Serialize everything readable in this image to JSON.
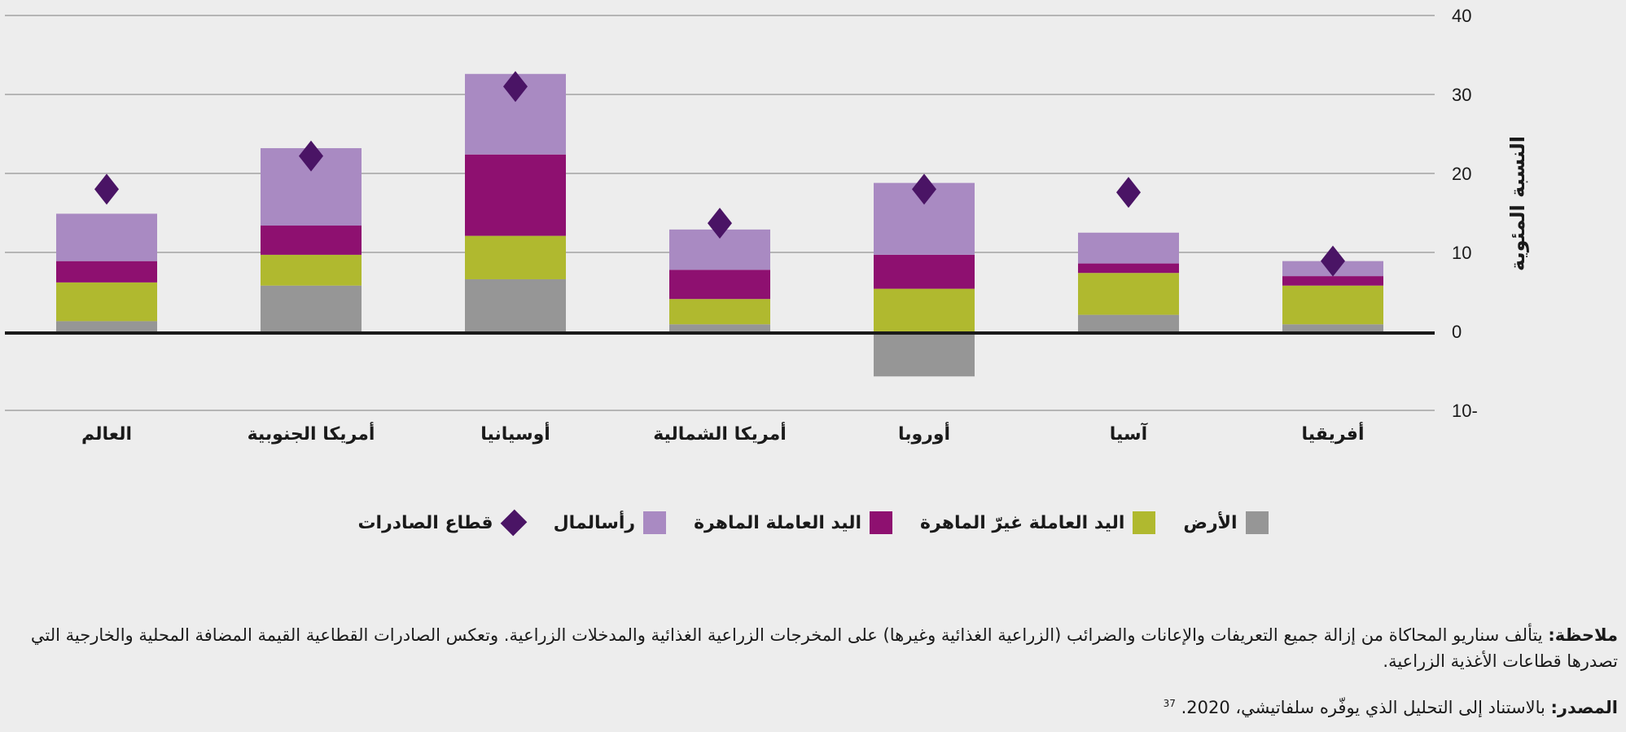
{
  "chart_data": {
    "type": "bar",
    "stacked": true,
    "categories": [
      "العالم",
      "أمريكا الجنوبية",
      "أوسيانيا",
      "أمريكا الشمالية",
      "أوروبا",
      "آسيا",
      "أفريقيا"
    ],
    "series": [
      {
        "name": "الأرض",
        "color": "#969696",
        "values": [
          1.3,
          5.8,
          6.6,
          0.9,
          -5.7,
          2.1,
          0.9
        ]
      },
      {
        "name": "اليد العاملة غيرّ الماهرة",
        "color": "#b0b92f",
        "values": [
          4.9,
          3.9,
          5.5,
          3.2,
          5.4,
          5.3,
          4.9
        ]
      },
      {
        "name": "اليد العاملة الماهرة",
        "color": "#8e1070",
        "values": [
          2.7,
          3.7,
          10.3,
          3.7,
          4.3,
          1.2,
          1.2
        ]
      },
      {
        "name": "رأسالمال",
        "color": "#a98ac2",
        "values": [
          6.0,
          9.8,
          10.2,
          5.1,
          9.1,
          3.9,
          1.9
        ]
      }
    ],
    "markers": {
      "name": "قطاع الصادرات",
      "type": "scatter",
      "color": "#4a1465",
      "values": [
        18,
        22.2,
        31,
        13.7,
        18,
        17.6,
        8.9
      ]
    },
    "ylabel": "النسبة المئوية",
    "ylim": [
      -10,
      40
    ],
    "yticks": [
      40,
      30,
      20,
      10,
      0,
      -10
    ],
    "ytick_labels": [
      "40",
      "30",
      "20",
      "10",
      "0",
      "10-"
    ],
    "grid": true,
    "legend_position": "bottom"
  },
  "notes": {
    "note_label": "ملاحظة:",
    "note_text": " يتألف سناريو المحاكاة من إزالة جميع التعريفات والإعانات والضرائب (الزراعية الغذائية وغيرها) على المخرجات الزراعية الغذائية والمدخلات الزراعية. وتعكس الصادرات القطاعية القيمة المضافة المحلية والخارجية التي تصدرها قطاعات الأغذية الزراعية.",
    "source_label": "المصدر:",
    "source_text": " بالاستناد إلى التحليل الذي يوفّره سلفاتيشي، 2020.",
    "source_ref": "37"
  }
}
